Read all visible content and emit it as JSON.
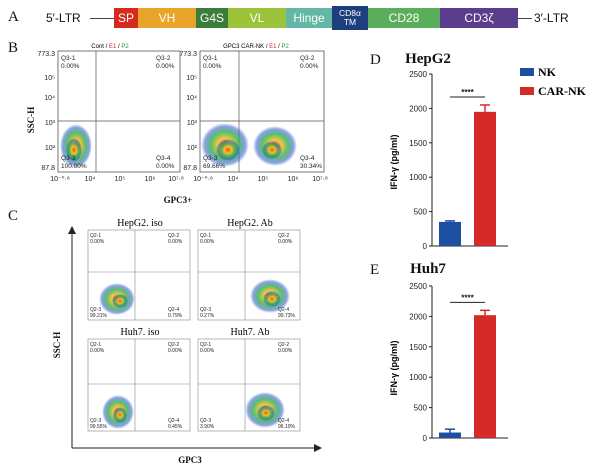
{
  "panels": {
    "A": "A",
    "B": "B",
    "C": "C",
    "D": "D",
    "E": "E"
  },
  "construct": {
    "left_ltr": "5′-LTR",
    "right_ltr": "3′-LTR",
    "segments": [
      {
        "label": "SP",
        "color": "#d62a1e"
      },
      {
        "label": "VH",
        "color": "#e8a52a"
      },
      {
        "label": "G4S",
        "color": "#3a7d3a"
      },
      {
        "label": "VL",
        "color": "#9cc33a"
      },
      {
        "label": "Hinge",
        "color": "#62b8a4"
      },
      {
        "label": "CD8α TM",
        "color": "#1e3f7d"
      },
      {
        "label": "CD28",
        "color": "#5aad5a"
      },
      {
        "label": "CD3ζ",
        "color": "#5a3d8c"
      }
    ]
  },
  "panel_b": {
    "ylabel": "SSC-H",
    "xlabel": "GPC3+",
    "yticks": [
      "87.8",
      "10²",
      "10³",
      "10⁴",
      "10⁵",
      "773.3"
    ],
    "xticks": [
      "10⁻⁰·⁸",
      "10⁴",
      "10⁵",
      "10⁶",
      "10⁷·⁸"
    ],
    "plots": [
      {
        "title_a": "Cont / ",
        "title_e1": "E1",
        "title_sep": " / ",
        "title_p2": "P2",
        "q1": "Q3-1",
        "q1v": "0.00%",
        "q2": "Q3-2",
        "q2v": "0.00%",
        "q3": "Q3-3",
        "q3v": "100.00%",
        "q4": "Q3-4",
        "q4v": "0.00%"
      },
      {
        "title_a": "GPC3 CAR-NK / ",
        "title_e1": "E1",
        "title_sep": " / ",
        "title_p2": "P2",
        "q1": "Q3-1",
        "q1v": "0.00%",
        "q2": "Q3-2",
        "q2v": "0.00%",
        "q3": "Q3-3",
        "q3v": "69.66%",
        "q4": "Q3-4",
        "q4v": "30.34%"
      }
    ]
  },
  "panel_c": {
    "ylabel": "SSC-H",
    "xlabel": "GPC3",
    "plots": [
      {
        "title": "HepG2. iso",
        "q1": "Q2-1",
        "q1v": "0.00%",
        "q2": "Q2-2",
        "q2v": "0.00%",
        "q3": "Q2-3",
        "q3v": "99.21%",
        "q4": "Q2-4",
        "q4v": "0.79%"
      },
      {
        "title": "HepG2. Ab",
        "q1": "Q2-1",
        "q1v": "0.00%",
        "q2": "Q2-2",
        "q2v": "0.00%",
        "q3": "Q2-3",
        "q3v": "0.27%",
        "q4": "Q2-4",
        "q4v": "99.73%"
      },
      {
        "title": "Huh7. iso",
        "q1": "Q2-1",
        "q1v": "0.00%",
        "q2": "Q2-2",
        "q2v": "0.00%",
        "q3": "Q2-3",
        "q3v": "99.55%",
        "q4": "Q2-4",
        "q4v": "0.45%"
      },
      {
        "title": "Huh7. Ab",
        "q1": "Q2-1",
        "q1v": "0.00%",
        "q2": "Q2-2",
        "q2v": "0.00%",
        "q3": "Q2-3",
        "q3v": "3.90%",
        "q4": "Q2-4",
        "q4v": "96.10%"
      }
    ]
  },
  "colors": {
    "nk": "#1c4fa0",
    "car_nk": "#d42a2a"
  },
  "chart_data": [
    {
      "type": "bar",
      "title": "HepG2",
      "ylabel": "IFN-γ (pg/ml)",
      "categories": [
        "NK",
        "CAR-NK"
      ],
      "values": [
        350,
        1950
      ],
      "errors": [
        15,
        100
      ],
      "ylim": [
        0,
        2500
      ],
      "yticks": [
        0,
        500,
        1000,
        1500,
        2000,
        2500
      ],
      "legend": [
        "NK",
        "CAR-NK"
      ],
      "legend_position": "top-right",
      "significance": "****"
    },
    {
      "type": "bar",
      "title": "Huh7",
      "ylabel": "IFN-γ (pg/ml)",
      "categories": [
        "NK",
        "CAR-NK"
      ],
      "values": [
        90,
        2020
      ],
      "errors": [
        55,
        80
      ],
      "ylim": [
        0,
        2500
      ],
      "yticks": [
        0,
        500,
        1000,
        1500,
        2000,
        2500
      ],
      "significance": "****"
    }
  ]
}
